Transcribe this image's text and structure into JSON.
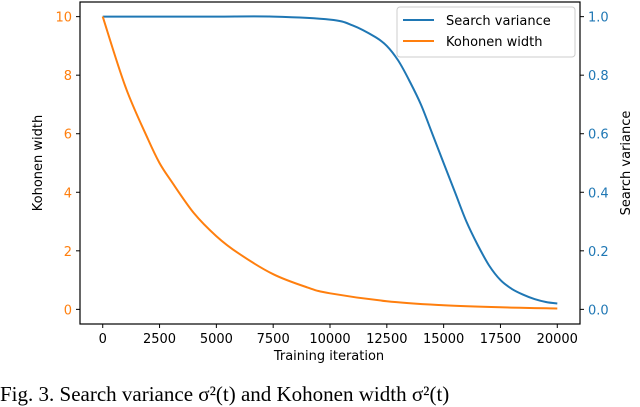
{
  "chart_data": {
    "type": "line",
    "title": "",
    "xlabel": "Training iteration",
    "ylabel_left": "Kohonen width",
    "ylabel_right": "Search variance",
    "xlim": [
      -1000,
      21000
    ],
    "ylim_left": [
      -0.5,
      10.5
    ],
    "ylim_right": [
      -0.05,
      1.05
    ],
    "x_ticks": [
      0,
      2500,
      5000,
      7500,
      10000,
      12500,
      15000,
      17500,
      20000
    ],
    "y_ticks_left": [
      0,
      2,
      4,
      6,
      8,
      10
    ],
    "y_ticks_right": [
      0.0,
      0.2,
      0.4,
      0.6,
      0.8,
      1.0
    ],
    "grid": false,
    "legend_position": "upper right",
    "series": [
      {
        "name": "Search variance",
        "axis": "right",
        "color": "#1f77b4",
        "x": [
          0,
          2500,
          5000,
          7500,
          10000,
          11000,
          12000,
          12500,
          13000,
          13500,
          14000,
          14500,
          15000,
          15500,
          16000,
          16500,
          17000,
          17500,
          18000,
          18500,
          19000,
          19500,
          20000
        ],
        "values": [
          1.0,
          1.0,
          1.0,
          1.0,
          0.99,
          0.97,
          0.93,
          0.9,
          0.85,
          0.78,
          0.7,
          0.6,
          0.5,
          0.4,
          0.3,
          0.22,
          0.15,
          0.1,
          0.07,
          0.05,
          0.035,
          0.025,
          0.02
        ]
      },
      {
        "name": "Kohonen width",
        "axis": "left",
        "color": "#ff7f0e",
        "x": [
          0,
          1000,
          2000,
          2500,
          3000,
          4000,
          5000,
          6000,
          7500,
          9000,
          10000,
          12500,
          15000,
          17500,
          20000
        ],
        "values": [
          10.0,
          7.6,
          5.8,
          5.0,
          4.4,
          3.3,
          2.5,
          1.9,
          1.2,
          0.75,
          0.55,
          0.28,
          0.14,
          0.07,
          0.03
        ]
      }
    ]
  },
  "caption": {
    "text": "Fig. 3.  Search variance σ²(t) and Kohonen width σ²(t)"
  },
  "colors": {
    "left_axis": "#ff7f0e",
    "right_axis": "#1f77b4"
  }
}
